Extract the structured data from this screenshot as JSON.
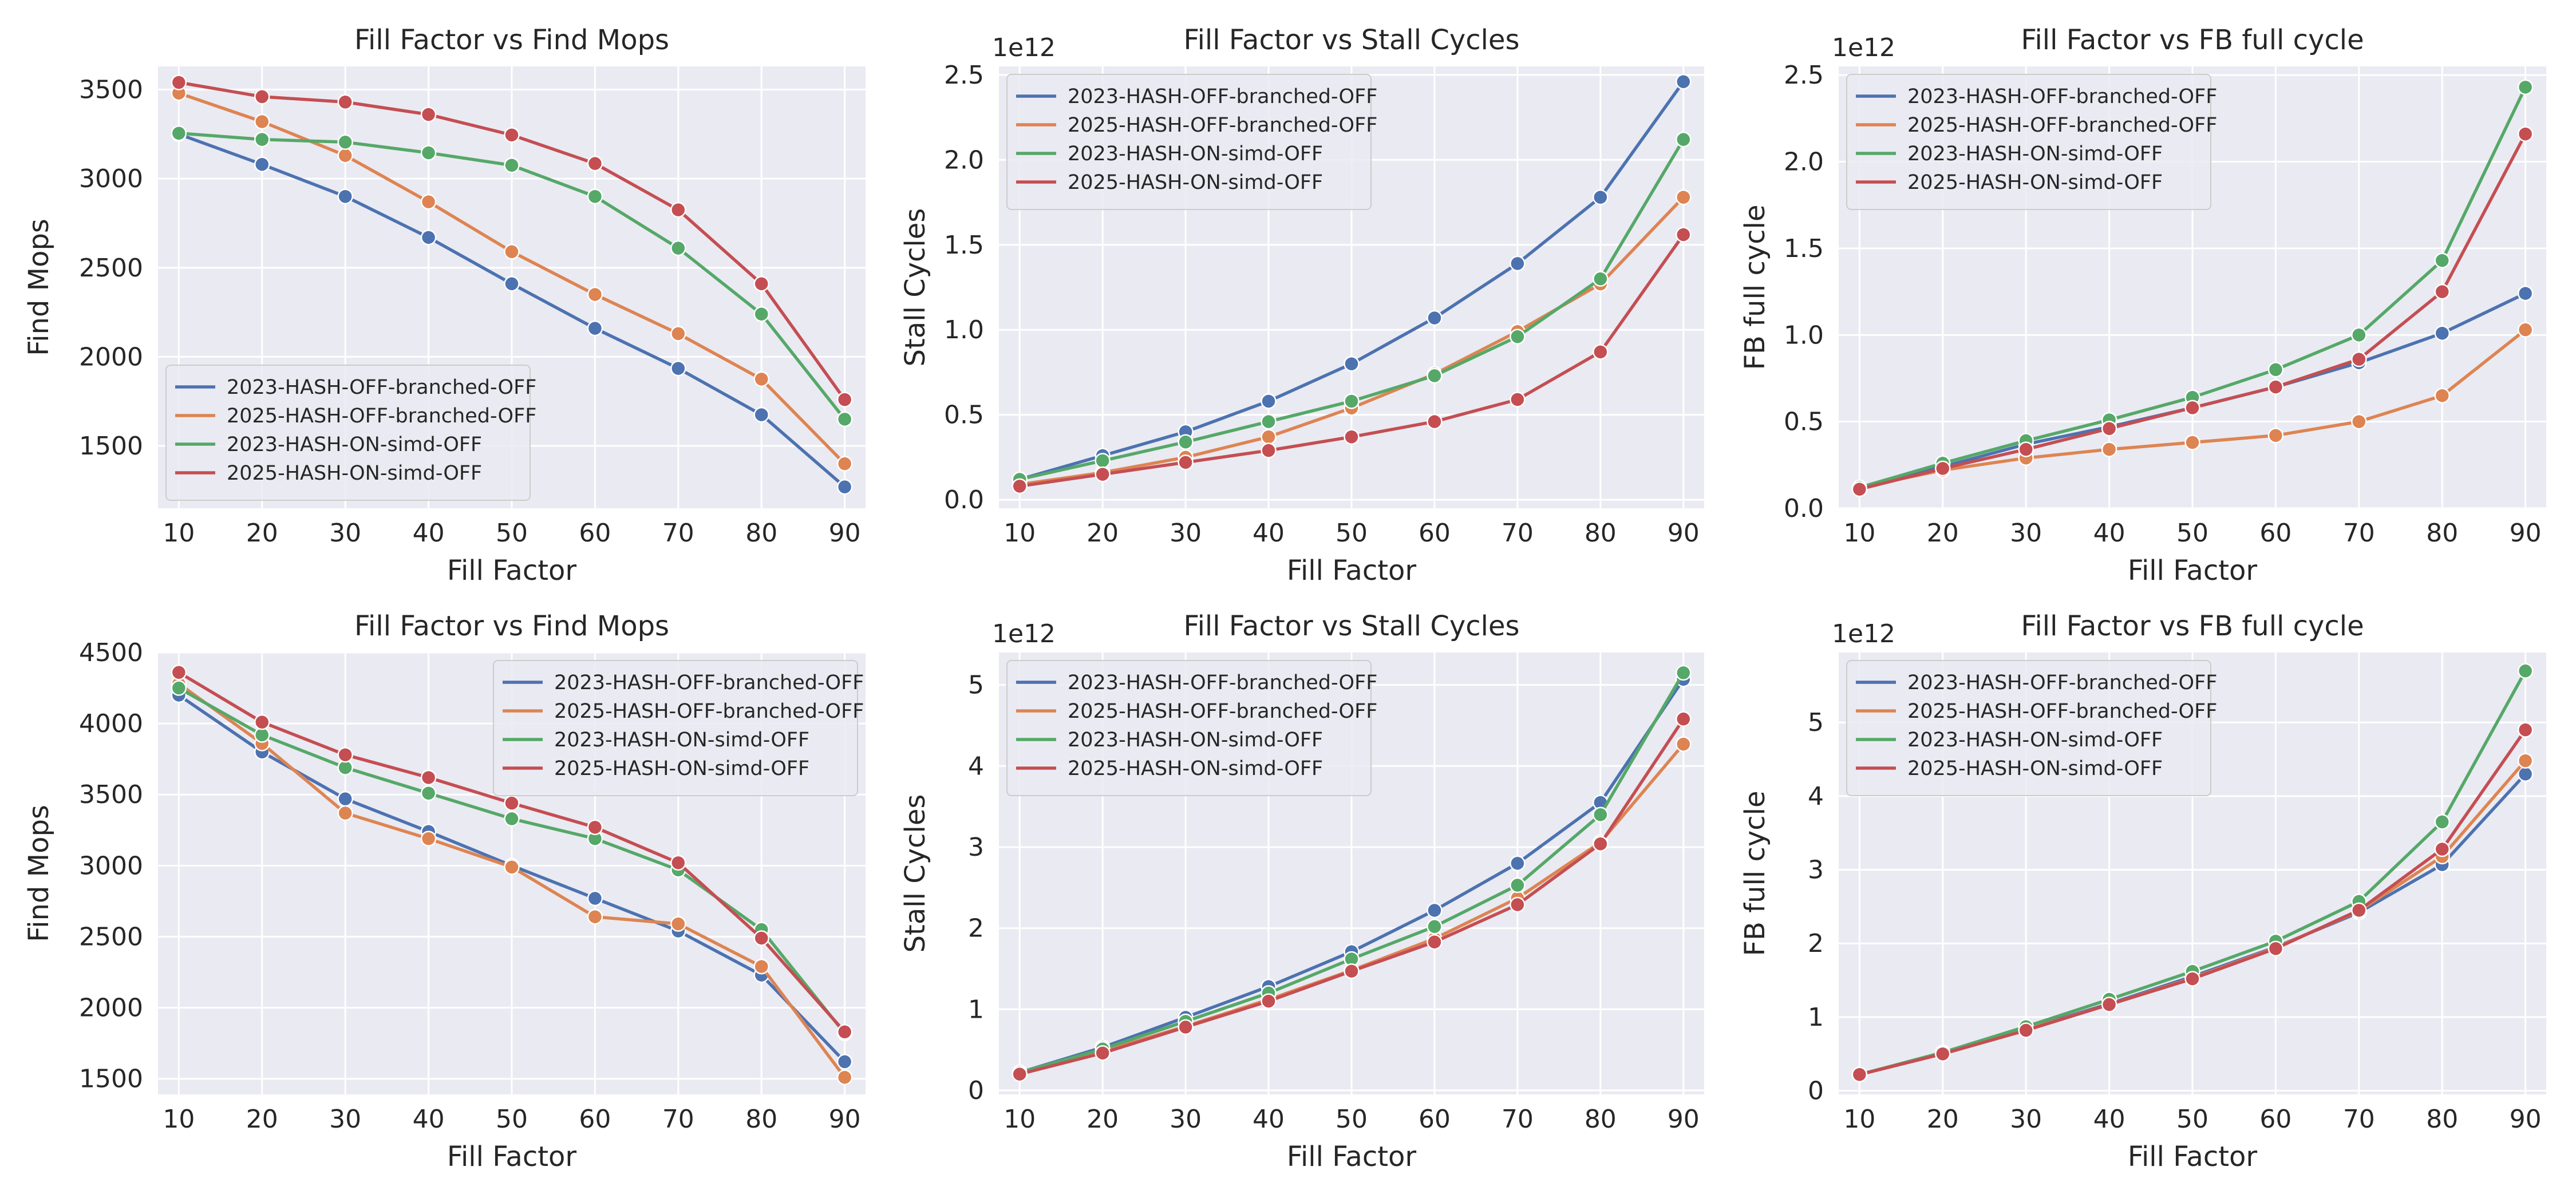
{
  "figure": {
    "background": "#ffffff",
    "axes_facecolor": "#eaeaf2",
    "grid_color": "#ffffff",
    "text_color": "#262626",
    "series_colors": {
      "2023-HASH-OFF-branched-OFF": "#4c72b0",
      "2025-HASH-OFF-branched-OFF": "#dd8452",
      "2023-HASH-ON-simd-OFF": "#55a868",
      "2025-HASH-ON-simd-OFF": "#c44e52"
    }
  },
  "chart_data": [
    {
      "type": "line",
      "title": "Fill Factor vs Find Mops",
      "xlabel": "Fill Factor",
      "ylabel": "Find Mops",
      "x": [
        10,
        20,
        30,
        40,
        50,
        60,
        70,
        80,
        90
      ],
      "xlim": [
        7.5,
        92.5
      ],
      "ylim": [
        1150,
        3630
      ],
      "yticks": [
        1500,
        2000,
        2500,
        3000,
        3500
      ],
      "ytick_labels": [
        "1500",
        "2000",
        "2500",
        "3000",
        "3500"
      ],
      "scale_label": "",
      "grid": true,
      "legend_position": "lower-left",
      "series": [
        {
          "name": "2023-HASH-OFF-branched-OFF",
          "values": [
            3250,
            3080,
            2900,
            2670,
            2410,
            2160,
            1935,
            1675,
            1270
          ]
        },
        {
          "name": "2025-HASH-OFF-branched-OFF",
          "values": [
            3480,
            3320,
            3130,
            2870,
            2590,
            2350,
            2130,
            1875,
            1400
          ]
        },
        {
          "name": "2023-HASH-ON-simd-OFF",
          "values": [
            3255,
            3220,
            3205,
            3145,
            3075,
            2900,
            2610,
            2240,
            1650
          ]
        },
        {
          "name": "2025-HASH-ON-simd-OFF",
          "values": [
            3540,
            3460,
            3430,
            3360,
            3245,
            3085,
            2825,
            2410,
            1760
          ]
        }
      ]
    },
    {
      "type": "line",
      "title": "Fill Factor vs Stall Cycles",
      "xlabel": "Fill Factor",
      "ylabel": "Stall Cycles",
      "x": [
        10,
        20,
        30,
        40,
        50,
        60,
        70,
        80,
        90
      ],
      "xlim": [
        7.5,
        92.5
      ],
      "ylim": [
        -0.05,
        2.55
      ],
      "yticks": [
        0.0,
        0.5,
        1.0,
        1.5,
        2.0,
        2.5
      ],
      "ytick_labels": [
        "0.0",
        "0.5",
        "1.0",
        "1.5",
        "2.0",
        "2.5"
      ],
      "scale_label": "1e12",
      "grid": true,
      "legend_position": "upper-left",
      "series": [
        {
          "name": "2023-HASH-OFF-branched-OFF",
          "values": [
            0.12,
            0.26,
            0.4,
            0.58,
            0.8,
            1.07,
            1.39,
            1.78,
            2.46
          ]
        },
        {
          "name": "2025-HASH-OFF-branched-OFF",
          "values": [
            0.09,
            0.16,
            0.25,
            0.37,
            0.54,
            0.74,
            0.99,
            1.27,
            1.78
          ]
        },
        {
          "name": "2023-HASH-ON-simd-OFF",
          "values": [
            0.12,
            0.23,
            0.34,
            0.46,
            0.58,
            0.73,
            0.96,
            1.3,
            2.12
          ]
        },
        {
          "name": "2025-HASH-ON-simd-OFF",
          "values": [
            0.08,
            0.15,
            0.22,
            0.29,
            0.37,
            0.46,
            0.59,
            0.87,
            1.56
          ]
        }
      ]
    },
    {
      "type": "line",
      "title": "Fill Factor vs FB full cycle",
      "xlabel": "Fill Factor",
      "ylabel": "FB full cycle",
      "x": [
        10,
        20,
        30,
        40,
        50,
        60,
        70,
        80,
        90
      ],
      "xlim": [
        7.5,
        92.5
      ],
      "ylim": [
        0.0,
        2.55
      ],
      "yticks": [
        0.0,
        0.5,
        1.0,
        1.5,
        2.0,
        2.5
      ],
      "ytick_labels": [
        "0.0",
        "0.5",
        "1.0",
        "1.5",
        "2.0",
        "2.5"
      ],
      "scale_label": "1e12",
      "grid": true,
      "legend_position": "upper-left",
      "series": [
        {
          "name": "2023-HASH-OFF-branched-OFF",
          "values": [
            0.12,
            0.24,
            0.37,
            0.47,
            0.58,
            0.7,
            0.84,
            1.01,
            1.24
          ]
        },
        {
          "name": "2025-HASH-OFF-branched-OFF",
          "values": [
            0.12,
            0.22,
            0.29,
            0.34,
            0.38,
            0.42,
            0.5,
            0.65,
            1.03
          ]
        },
        {
          "name": "2023-HASH-ON-simd-OFF",
          "values": [
            0.12,
            0.26,
            0.39,
            0.51,
            0.64,
            0.8,
            1.0,
            1.43,
            2.43
          ]
        },
        {
          "name": "2025-HASH-ON-simd-OFF",
          "values": [
            0.11,
            0.23,
            0.34,
            0.46,
            0.58,
            0.7,
            0.86,
            1.25,
            2.16
          ]
        }
      ]
    },
    {
      "type": "line",
      "title": "Fill Factor vs Find Mops",
      "xlabel": "Fill Factor",
      "ylabel": "Find Mops",
      "x": [
        10,
        20,
        30,
        40,
        50,
        60,
        70,
        80,
        90
      ],
      "xlim": [
        7.5,
        92.5
      ],
      "ylim": [
        1390,
        4500
      ],
      "yticks": [
        1500,
        2000,
        2500,
        3000,
        3500,
        4000,
        4500
      ],
      "ytick_labels": [
        "1500",
        "2000",
        "2500",
        "3000",
        "3500",
        "4000",
        "4500"
      ],
      "scale_label": "",
      "grid": true,
      "legend_position": "upper-right",
      "series": [
        {
          "name": "2023-HASH-OFF-branched-OFF",
          "values": [
            4200,
            3800,
            3470,
            3240,
            3000,
            2770,
            2540,
            2230,
            1620
          ]
        },
        {
          "name": "2025-HASH-OFF-branched-OFF",
          "values": [
            4280,
            3860,
            3370,
            3190,
            2990,
            2640,
            2590,
            2290,
            1510
          ]
        },
        {
          "name": "2023-HASH-ON-simd-OFF",
          "values": [
            4250,
            3920,
            3690,
            3510,
            3330,
            3190,
            2970,
            2550,
            1820
          ]
        },
        {
          "name": "2025-HASH-ON-simd-OFF",
          "values": [
            4360,
            4010,
            3780,
            3620,
            3440,
            3270,
            3020,
            2490,
            1830
          ]
        }
      ]
    },
    {
      "type": "line",
      "title": "Fill Factor vs Stall Cycles",
      "xlabel": "Fill Factor",
      "ylabel": "Stall Cycles",
      "x": [
        10,
        20,
        30,
        40,
        50,
        60,
        70,
        80,
        90
      ],
      "xlim": [
        7.5,
        92.5
      ],
      "ylim": [
        -0.05,
        5.4
      ],
      "yticks": [
        0,
        1,
        2,
        3,
        4,
        5
      ],
      "ytick_labels": [
        "0",
        "1",
        "2",
        "3",
        "4",
        "5"
      ],
      "scale_label": "1e12",
      "grid": true,
      "legend_position": "upper-left",
      "series": [
        {
          "name": "2023-HASH-OFF-branched-OFF",
          "values": [
            0.22,
            0.53,
            0.9,
            1.28,
            1.71,
            2.22,
            2.8,
            3.55,
            5.07
          ]
        },
        {
          "name": "2025-HASH-OFF-branched-OFF",
          "values": [
            0.21,
            0.48,
            0.79,
            1.12,
            1.48,
            1.87,
            2.37,
            3.06,
            4.27
          ]
        },
        {
          "name": "2023-HASH-ON-simd-OFF",
          "values": [
            0.22,
            0.51,
            0.85,
            1.2,
            1.62,
            2.02,
            2.53,
            3.4,
            5.15
          ]
        },
        {
          "name": "2025-HASH-ON-simd-OFF",
          "values": [
            0.2,
            0.46,
            0.78,
            1.1,
            1.47,
            1.83,
            2.29,
            3.04,
            4.58
          ]
        }
      ]
    },
    {
      "type": "line",
      "title": "Fill Factor vs FB full cycle",
      "xlabel": "Fill Factor",
      "ylabel": "FB full cycle",
      "x": [
        10,
        20,
        30,
        40,
        50,
        60,
        70,
        80,
        90
      ],
      "xlim": [
        7.5,
        92.5
      ],
      "ylim": [
        -0.05,
        5.95
      ],
      "yticks": [
        0,
        1,
        2,
        3,
        4,
        5
      ],
      "ytick_labels": [
        "0",
        "1",
        "2",
        "3",
        "4",
        "5"
      ],
      "scale_label": "1e12",
      "grid": true,
      "legend_position": "upper-left",
      "series": [
        {
          "name": "2023-HASH-OFF-branched-OFF",
          "values": [
            0.22,
            0.51,
            0.84,
            1.18,
            1.55,
            1.95,
            2.42,
            3.07,
            4.3
          ]
        },
        {
          "name": "2025-HASH-OFF-branched-OFF",
          "values": [
            0.22,
            0.51,
            0.83,
            1.17,
            1.53,
            1.94,
            2.44,
            3.18,
            4.48
          ]
        },
        {
          "name": "2023-HASH-ON-simd-OFF",
          "values": [
            0.22,
            0.52,
            0.87,
            1.24,
            1.62,
            2.03,
            2.57,
            3.65,
            5.7
          ]
        },
        {
          "name": "2025-HASH-ON-simd-OFF",
          "values": [
            0.22,
            0.5,
            0.82,
            1.17,
            1.52,
            1.93,
            2.45,
            3.28,
            4.9
          ]
        }
      ]
    }
  ]
}
